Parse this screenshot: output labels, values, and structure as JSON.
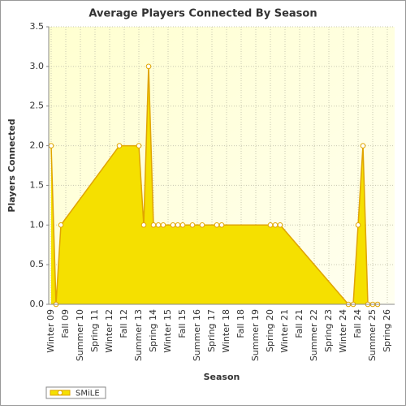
{
  "chart_data": {
    "type": "area",
    "title": "Average Players Connected By Season",
    "x_label": "Season",
    "y_label": "Players Connected",
    "categories": [
      "Winter 09",
      null,
      null,
      "Fall 09",
      null,
      null,
      "Summer 10",
      null,
      null,
      "Spring 11",
      null,
      null,
      "Winter 12",
      null,
      null,
      "Fall 12",
      null,
      null,
      "Summer 13",
      null,
      null,
      "Spring 14",
      null,
      null,
      "Winter 15",
      null,
      null,
      "Fall 15",
      null,
      null,
      "Summer 16",
      null,
      null,
      "Spring 17",
      null,
      null,
      "Winter 18",
      null,
      null,
      "Fall 18",
      null,
      null,
      "Summer 19",
      null,
      null,
      "Spring 20",
      null,
      null,
      "Winter 21",
      null,
      null,
      "Fall 21",
      null,
      null,
      "Summer 22",
      null,
      null,
      "Spring 23",
      null,
      null,
      "Winter 24",
      null,
      null,
      "Fall 24",
      null,
      null,
      "Summer 25",
      null,
      null,
      "Spring 26",
      null
    ],
    "series": [
      {
        "name": "SMiLE",
        "color": "#f5e000",
        "line_color": "#e0a400",
        "values": [
          2,
          0,
          1,
          null,
          null,
          null,
          null,
          null,
          null,
          null,
          null,
          null,
          null,
          null,
          2,
          null,
          null,
          null,
          2,
          1,
          3,
          1,
          1,
          1,
          null,
          1,
          1,
          1,
          null,
          1,
          null,
          1,
          null,
          null,
          1,
          1,
          null,
          null,
          null,
          null,
          null,
          null,
          null,
          null,
          null,
          1,
          1,
          1,
          null,
          null,
          null,
          null,
          null,
          null,
          null,
          null,
          null,
          null,
          null,
          null,
          null,
          0,
          0,
          1,
          2,
          0,
          0,
          0,
          null,
          null,
          null
        ]
      }
    ],
    "ylim": [
      0,
      3.5
    ],
    "yticks": [
      {
        "value": 0,
        "label": "0.0"
      },
      {
        "value": 0.5,
        "label": "0.5"
      },
      {
        "value": 1,
        "label": "1.0"
      },
      {
        "value": 1.5,
        "label": "1.5"
      },
      {
        "value": 2,
        "label": "2.0"
      },
      {
        "value": 2.5,
        "label": "2.5"
      },
      {
        "value": 3,
        "label": "3.0"
      },
      {
        "value": 3.5,
        "label": "3.5"
      }
    ],
    "grid": true,
    "legend": "bottom-left"
  }
}
